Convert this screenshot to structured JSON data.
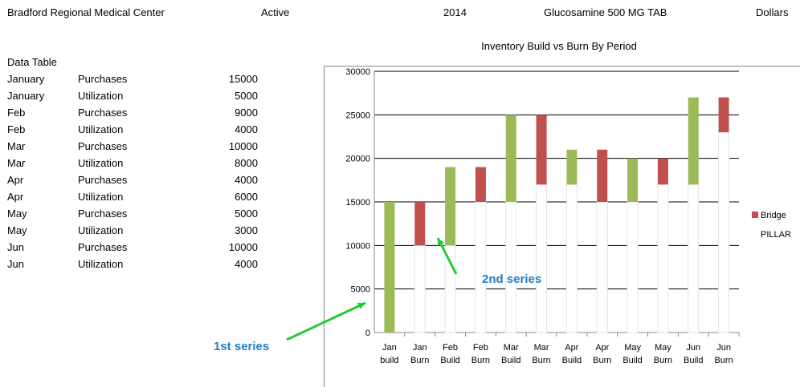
{
  "header": {
    "facility": "Bradford Regional Medical  Center",
    "status": "Active",
    "year": "2014",
    "product": "Glucosamine 500 MG TAB",
    "unit": "Dollars"
  },
  "data_table": {
    "title": "Data Table",
    "rows": [
      {
        "month": "January",
        "type": "Purchases",
        "value": "15000"
      },
      {
        "month": "January",
        "type": "Utilization",
        "value": "5000"
      },
      {
        "month": "Feb",
        "type": "Purchases",
        "value": "9000"
      },
      {
        "month": "Feb",
        "type": "Utilization",
        "value": "4000"
      },
      {
        "month": "Mar",
        "type": "Purchases",
        "value": "10000"
      },
      {
        "month": "Mar",
        "type": "Utilization",
        "value": "8000"
      },
      {
        "month": "Apr",
        "type": "Purchases",
        "value": "4000"
      },
      {
        "month": "Apr",
        "type": "Utilization",
        "value": "6000"
      },
      {
        "month": "May",
        "type": "Purchases",
        "value": "5000"
      },
      {
        "month": "May",
        "type": "Utilization",
        "value": "3000"
      },
      {
        "month": "Jun",
        "type": "Purchases",
        "value": "10000"
      },
      {
        "month": "Jun",
        "type": "Utilization",
        "value": "4000"
      }
    ]
  },
  "annotations": {
    "first": "1st series",
    "second": "2nd series",
    "arrow_color": "#22cc33"
  },
  "chart_data": {
    "type": "bar",
    "stacked": true,
    "title": "Inventory Build vs Burn By Period",
    "categories": [
      [
        "Jan",
        "build"
      ],
      [
        "Jan",
        "Burn"
      ],
      [
        "Feb",
        "Build"
      ],
      [
        "Feb",
        "Burn"
      ],
      [
        "Mar",
        "Build"
      ],
      [
        "Mar",
        "Burn"
      ],
      [
        "Apr",
        "Build"
      ],
      [
        "Apr",
        "Burn"
      ],
      [
        "May",
        "Build"
      ],
      [
        "May",
        "Burn"
      ],
      [
        "Jun",
        "Build"
      ],
      [
        "Jun",
        "Burn"
      ]
    ],
    "series": [
      {
        "name": "PILLAR",
        "values": [
          0,
          10000,
          10000,
          15000,
          15000,
          17000,
          17000,
          15000,
          15000,
          17000,
          17000,
          23000
        ],
        "color": "#ffffff"
      },
      {
        "name": "Bridge",
        "values": [
          15000,
          5000,
          9000,
          4000,
          10000,
          8000,
          4000,
          6000,
          5000,
          3000,
          10000,
          4000
        ],
        "color": "#c0504d",
        "build_color": "#9bbb59",
        "burn_color": "#c0504d"
      }
    ],
    "ylim": [
      0,
      30000
    ],
    "yticks": [
      0,
      5000,
      10000,
      15000,
      20000,
      25000,
      30000
    ],
    "grid": true,
    "legend": "right"
  }
}
